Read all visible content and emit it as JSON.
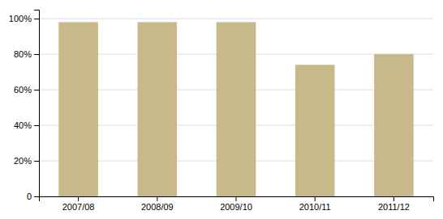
{
  "chart_data": {
    "type": "bar",
    "categories": [
      "2007/08",
      "2008/09",
      "2009/10",
      "2010/11",
      "2011/12"
    ],
    "values": [
      0.98,
      0.98,
      0.98,
      0.74,
      0.8
    ],
    "color": "#c8b98a",
    "ylim": [
      0,
      1.05
    ],
    "yticks": [
      0,
      {
        "value": 0.2,
        "label": "20%"
      },
      {
        "value": 0.4,
        "label": "40%"
      },
      {
        "value": 0.6,
        "label": "60%"
      },
      {
        "value": 0.8,
        "label": "80%"
      },
      {
        "value": 1.0,
        "label": "100%"
      }
    ],
    "grid": true
  }
}
